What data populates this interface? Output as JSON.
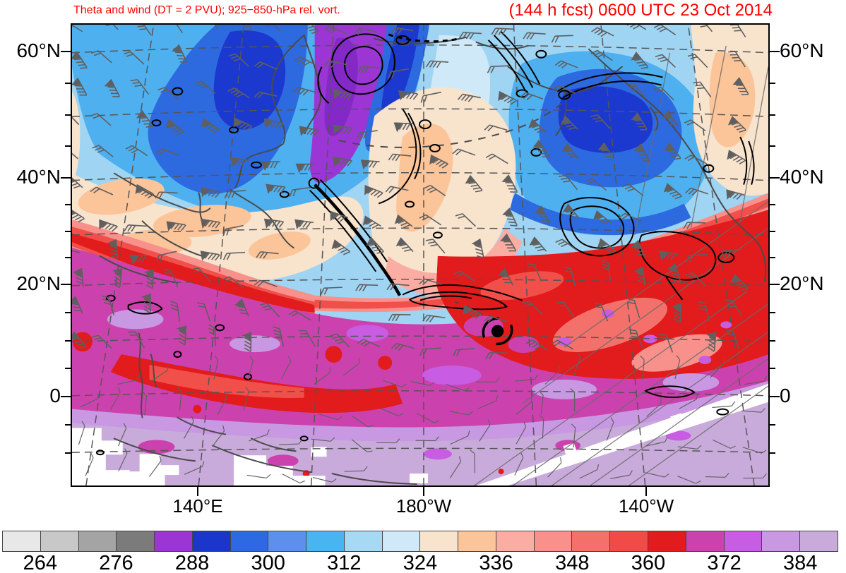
{
  "titles": {
    "left": "Theta and wind (DT = 2 PVU); 925−850-hPa rel. vort.",
    "right": "(144 h fcst) 0600 UTC 23 Oct 2014",
    "color": "#ff0000"
  },
  "axes": {
    "lat_labels": [
      "60°N",
      "40°N",
      "20°N",
      "0"
    ],
    "lon_labels": [
      "140°E",
      "180°W",
      "140°W"
    ]
  },
  "colorbar": {
    "tick_labels": [
      "264",
      "276",
      "288",
      "300",
      "312",
      "324",
      "336",
      "348",
      "360",
      "372",
      "384"
    ],
    "colors": [
      "#e8e8e8",
      "#c8c8c8",
      "#a4a4a4",
      "#7b7b7b",
      "#9b36d4",
      "#1a36cb",
      "#2c69e2",
      "#5d8fec",
      "#49b5f0",
      "#a6d9f4",
      "#cfe9f8",
      "#f8e3cd",
      "#fcc499",
      "#fbada3",
      "#f8918c",
      "#f4716b",
      "#f04b46",
      "#e21b1c",
      "#cb42ae",
      "#c85ce2",
      "#c898e2",
      "#c9abdb"
    ]
  },
  "chart_data": {
    "type": "filled_contour_map",
    "title_left": "Theta and wind (DT = 2 PVU); 925−850-hPa rel. vort.",
    "title_right": "(144 h fcst) 0600 UTC 23 Oct 2014",
    "colorbar": {
      "interval": 6,
      "range_start": 258,
      "range_end": 390,
      "tick_labels": [
        264,
        276,
        288,
        300,
        312,
        324,
        336,
        348,
        360,
        372,
        384
      ],
      "colors": [
        "#e8e8e8",
        "#c8c8c8",
        "#a4a4a4",
        "#7b7b7b",
        "#9b36d4",
        "#1a36cb",
        "#2c69e2",
        "#5d8fec",
        "#49b5f0",
        "#a6d9f4",
        "#cfe9f8",
        "#f8e3cd",
        "#fcc499",
        "#fbada3",
        "#f8918c",
        "#f4716b",
        "#f04b46",
        "#e21b1c",
        "#cb42ae",
        "#c85ce2",
        "#c898e2",
        "#c9abdb"
      ]
    },
    "y_tick_labels": [
      "60°N",
      "40°N",
      "20°N",
      "0"
    ],
    "x_tick_labels": [
      "140°E",
      "180°W",
      "140°W"
    ],
    "legend_position": "bottom",
    "grid": "dashed lat-lon graticule"
  }
}
